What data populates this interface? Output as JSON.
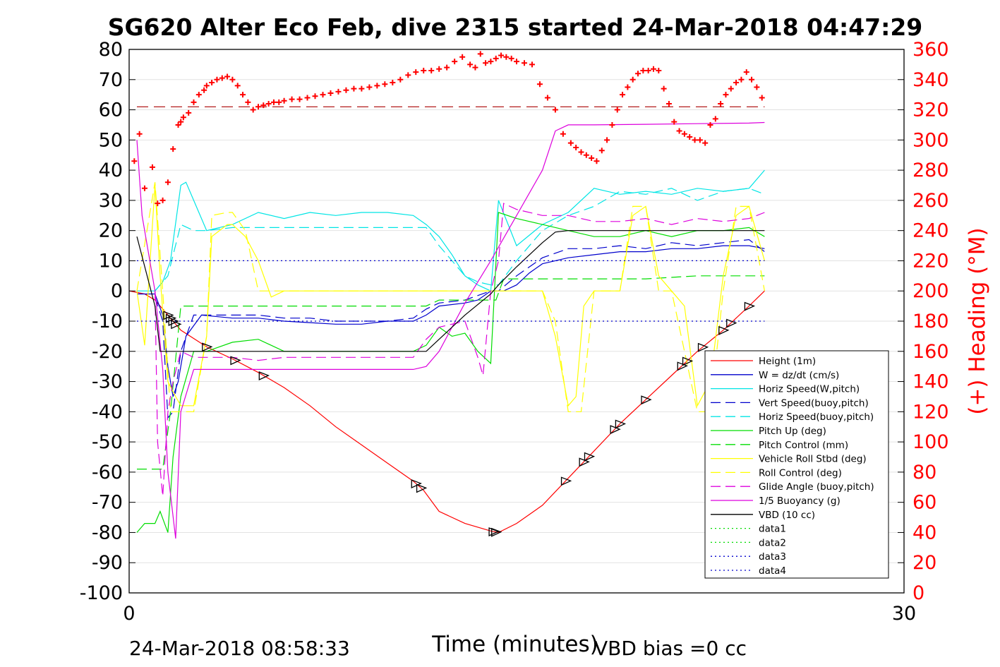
{
  "chart_data": {
    "type": "line",
    "title": "SG620 Alter Eco Feb, dive 2315 started 24-Mar-2018 04:47:29",
    "xlabel": "Time (minutes)",
    "ylabel": "",
    "ylabel_right": "(+) Heading (°M)",
    "xlim": [
      0,
      30
    ],
    "ylim": [
      -100,
      80
    ],
    "ylim_right": [
      0,
      360
    ],
    "x_ticks": [
      "0",
      "30"
    ],
    "y_ticks": [
      "80",
      "70",
      "60",
      "50",
      "40",
      "30",
      "20",
      "10",
      "0",
      "-10",
      "-20",
      "-30",
      "-40",
      "-50",
      "-60",
      "-70",
      "-80",
      "-90",
      "-100"
    ],
    "y_ticks_right": [
      "360",
      "340",
      "320",
      "300",
      "280",
      "260",
      "240",
      "220",
      "200",
      "180",
      "160",
      "140",
      "120",
      "100",
      "80",
      "60",
      "40",
      "20",
      "0"
    ],
    "grid": true,
    "legend_position": "lower-right",
    "footer_left": "24-Mar-2018 08:58:33",
    "footer_right": "VBD bias =0 cc",
    "colors": {
      "red": "#ff0000",
      "blue": "#0000cc",
      "cyan": "#00e5e5",
      "green": "#00dd00",
      "yellow": "#ffff00",
      "magenta": "#dd00dd",
      "black": "#000000",
      "darkred": "#aa0000"
    },
    "series": [
      {
        "name": "Height (1m)",
        "color": "#ff0000",
        "style": "solid",
        "x": [
          0,
          0.6,
          1.0,
          1.5,
          2.0,
          3.0,
          4.0,
          5.0,
          6.0,
          7.0,
          8.0,
          9.0,
          10.0,
          11.0,
          11.4,
          12.0,
          13.0,
          14.0,
          14.3,
          15.0,
          16.0,
          17.0,
          18.0,
          19.0,
          20.0,
          21.0,
          22.0,
          23.0,
          24.0,
          24.6
        ],
        "y": [
          0,
          -1,
          -3,
          -8,
          -13,
          -18.5,
          -22.5,
          -27,
          -32,
          -38,
          -45,
          -51,
          -57,
          -63,
          -66,
          -73,
          -77,
          -79.5,
          -80,
          -77,
          -71,
          -62,
          -53,
          -44,
          -36,
          -28,
          -20,
          -13,
          -5,
          0
        ]
      },
      {
        "name": "W = dz/dt (cm/s)",
        "color": "#0000cc",
        "style": "solid",
        "x": [
          0.3,
          1.0,
          1.3,
          1.5,
          1.7,
          1.9,
          2.2,
          2.8,
          4.0,
          5.0,
          6.0,
          7.0,
          8.0,
          9.0,
          10.0,
          11.0,
          11.5,
          12.0,
          13.0,
          13.5,
          14.0,
          14.2,
          14.5,
          15.0,
          15.5,
          16.0,
          17.0,
          18.0,
          19.0,
          20.0,
          21.0,
          22.0,
          23.0,
          24.0,
          24.6
        ],
        "y": [
          -1,
          -1,
          -8,
          -25,
          -35,
          -30,
          -15,
          -8,
          -9,
          -9,
          -10,
          -10.5,
          -11,
          -11,
          -10,
          -10,
          -8,
          -5,
          -4,
          -3,
          0,
          0,
          0,
          2,
          6,
          9,
          11,
          12,
          13,
          13,
          14,
          14,
          15,
          15,
          14
        ]
      },
      {
        "name": "Horiz Speed(W,pitch)",
        "color": "#00e5e5",
        "style": "solid",
        "x": [
          0.3,
          1.0,
          1.3,
          1.6,
          2.0,
          2.2,
          2.5,
          3.0,
          4.0,
          5.0,
          6.0,
          7.0,
          8.0,
          9.0,
          10.0,
          11.0,
          11.5,
          12.0,
          12.5,
          13.0,
          13.5,
          14.0,
          14.3,
          15.0,
          16.0,
          17.0,
          18.0,
          19.0,
          20.0,
          21.0,
          22.0,
          23.0,
          24.0,
          24.6
        ],
        "y": [
          0,
          0,
          3,
          10,
          35,
          36,
          30,
          20,
          22,
          26,
          24,
          26,
          25,
          26,
          26,
          25,
          22,
          18,
          12,
          5,
          2,
          0,
          30,
          15,
          22,
          26,
          34,
          32,
          33,
          32,
          34,
          33,
          34,
          40
        ]
      },
      {
        "name": "Vert Speed(buoy,pitch)",
        "color": "#0000cc",
        "style": "dashed",
        "x": [
          1.0,
          1.3,
          1.5,
          1.7,
          2.0,
          2.5,
          3.0,
          4.0,
          5.0,
          6.0,
          7.0,
          8.0,
          9.0,
          10.0,
          11.0,
          11.5,
          12.0,
          13.0,
          14.0,
          14.3,
          15.0,
          16.0,
          17.0,
          18.0,
          19.0,
          20.0,
          21.0,
          22.0,
          23.0,
          24.0,
          24.6
        ],
        "y": [
          -2,
          -10,
          -42,
          -40,
          -20,
          -8,
          -8,
          -8,
          -8,
          -9,
          -9,
          -10,
          -10,
          -10,
          -9,
          -6,
          -4,
          -3,
          0,
          0,
          5,
          11,
          14,
          14,
          15,
          14,
          16,
          15,
          16,
          17,
          13
        ]
      },
      {
        "name": "Horiz Speed(buoy,pitch)",
        "color": "#00e5e5",
        "style": "dashed",
        "x": [
          1.0,
          1.5,
          2.0,
          2.5,
          3.0,
          4.0,
          5.0,
          6.0,
          7.0,
          8.0,
          9.0,
          10.0,
          11.0,
          11.5,
          12.0,
          12.5,
          13.0,
          13.5,
          14.0,
          14.3,
          15.0,
          16.0,
          17.0,
          18.0,
          19.0,
          20.0,
          21.0,
          22.0,
          23.0,
          24.0,
          24.6
        ],
        "y": [
          0,
          5,
          22,
          20,
          20,
          21,
          21,
          21,
          21,
          21,
          21,
          21,
          21,
          21,
          15,
          10,
          5,
          3,
          2,
          2,
          10,
          20,
          25,
          28,
          33,
          32,
          34,
          30,
          33,
          34,
          32
        ]
      },
      {
        "name": "Pitch Up (deg)",
        "color": "#00dd00",
        "style": "solid",
        "x": [
          0.3,
          0.6,
          1.0,
          1.2,
          1.5,
          1.7,
          2.0,
          2.5,
          3.0,
          4.0,
          5.0,
          6.0,
          7.0,
          8.0,
          9.0,
          10.0,
          11.0,
          11.5,
          12.0,
          12.5,
          13.0,
          13.5,
          14.0,
          14.3,
          15.0,
          16.0,
          17.0,
          18.0,
          19.0,
          20.0,
          21.0,
          22.0,
          23.0,
          24.0,
          24.6
        ],
        "y": [
          -80,
          -77,
          -77,
          -73,
          -80,
          -55,
          -35,
          -20,
          -20,
          -17,
          -16,
          -20,
          -20,
          -20,
          -20,
          -20,
          -20,
          -18,
          -12,
          -15,
          -14,
          -20,
          -24,
          26,
          24,
          22,
          20,
          18,
          18,
          20,
          18,
          20,
          20,
          21,
          18
        ]
      },
      {
        "name": "Pitch Control (mm)",
        "color": "#00dd00",
        "style": "dashed",
        "x": [
          0.3,
          1.0,
          1.3,
          1.6,
          2.0,
          2.5,
          4.0,
          6.0,
          8.0,
          10.0,
          11.5,
          12.0,
          13.0,
          14.0,
          14.2,
          14.5,
          15.0,
          16.0,
          18.0,
          20.0,
          22.0,
          24.0,
          24.6
        ],
        "y": [
          -59,
          -59,
          -59,
          -40,
          -5,
          -5,
          -5,
          -5,
          -5,
          -5,
          -5,
          -3,
          -3,
          -3,
          -3,
          4,
          4,
          4,
          4,
          4,
          5,
          5,
          5
        ]
      },
      {
        "name": "Vehicle Roll Stbd (deg)",
        "color": "#ffff00",
        "style": "solid",
        "x": [
          0.3,
          0.6,
          1.0,
          1.2,
          1.5,
          1.8,
          2.0,
          2.5,
          3.0,
          3.2,
          3.8,
          4.0,
          4.5,
          5.0,
          5.5,
          6.0,
          6.5,
          7.0,
          8.0,
          9.0,
          10.0,
          11.0,
          12.0,
          13.0,
          14.0,
          15.0,
          16.0,
          16.5,
          17.0,
          17.3,
          17.6,
          18.0,
          19.0,
          19.5,
          20.0,
          20.5,
          21.0,
          21.5,
          22.0,
          22.5,
          23.0,
          23.5,
          24.0,
          24.6
        ],
        "y": [
          0,
          -18,
          35,
          5,
          -30,
          -35,
          -38,
          -38,
          -15,
          18,
          22,
          22,
          18,
          10,
          -2,
          0,
          0,
          0,
          0,
          0,
          0,
          0,
          0,
          0,
          0,
          0,
          0,
          -15,
          -38,
          -35,
          -5,
          0,
          0,
          25,
          28,
          5,
          0,
          -5,
          -38,
          -30,
          5,
          25,
          28,
          10
        ]
      },
      {
        "name": "Roll Control (deg)",
        "color": "#ffff00",
        "style": "dashed",
        "x": [
          0.3,
          1.0,
          1.3,
          1.6,
          2.0,
          2.5,
          3.0,
          3.2,
          3.8,
          4.0,
          4.5,
          5.0,
          6.0,
          8.0,
          10.0,
          12.0,
          14.0,
          16.0,
          16.5,
          17.0,
          17.5,
          18.0,
          19.0,
          19.5,
          20.0,
          20.5,
          21.0,
          22.0,
          22.5,
          23.0,
          23.5,
          24.0,
          24.6
        ],
        "y": [
          0,
          36,
          0,
          -40,
          -40,
          -40,
          -15,
          25,
          26,
          26,
          20,
          0,
          0,
          0,
          0,
          0,
          0,
          0,
          -10,
          -40,
          -40,
          0,
          0,
          28,
          28,
          0,
          0,
          -40,
          -40,
          0,
          28,
          28,
          0
        ]
      },
      {
        "name": "Glide Angle (buoy,pitch)",
        "color": "#dd00dd",
        "style": "dashed",
        "x": [
          1.0,
          1.1,
          1.3,
          1.5,
          1.7,
          2.0,
          2.5,
          3.0,
          4.0,
          5.0,
          6.0,
          7.0,
          8.0,
          9.0,
          10.0,
          11.0,
          11.5,
          12.0,
          13.0,
          13.5,
          13.7,
          14.0,
          14.3,
          14.5,
          15.0,
          16.0,
          17.0,
          18.0,
          19.0,
          20.0,
          21.0,
          22.0,
          23.0,
          24.0,
          24.6
        ],
        "y": [
          0,
          -50,
          -68,
          -40,
          -30,
          -20,
          -22,
          -22,
          -22,
          -23,
          -22,
          -22,
          -22,
          -22,
          -22,
          -22,
          -16,
          -12,
          -10,
          -22,
          -28,
          0,
          10,
          29,
          27,
          25,
          25,
          23,
          23,
          24,
          22,
          24,
          23,
          24,
          26
        ]
      },
      {
        "name": "1/5 Buoyancy (g)",
        "color": "#dd00dd",
        "style": "solid",
        "x": [
          0.3,
          0.5,
          1.0,
          1.3,
          1.5,
          1.8,
          2.0,
          2.5,
          3.0,
          5.0,
          8.0,
          11.0,
          11.5,
          12.0,
          13.0,
          14.0,
          15.0,
          16.0,
          16.5,
          17.0,
          18.0,
          20.0,
          22.0,
          24.0,
          24.6
        ],
        "y": [
          50,
          25,
          0,
          -26,
          -60,
          -82,
          -40,
          -26,
          -26,
          -26,
          -26,
          -26,
          -25,
          -20,
          -4,
          10,
          25,
          40,
          53,
          55,
          55,
          55.2,
          55.4,
          55.6,
          55.8
        ]
      },
      {
        "name": "VBD (10 cc)",
        "color": "#000000",
        "style": "solid",
        "x": [
          0.3,
          1.0,
          1.2,
          1.5,
          2.0,
          4.0,
          6.0,
          8.0,
          10.0,
          11.0,
          11.5,
          12.0,
          13.0,
          14.0,
          14.3,
          15.0,
          16.0,
          16.5,
          17.0,
          18.0,
          20.0,
          22.0,
          24.0,
          24.6
        ],
        "y": [
          18,
          -5,
          -20,
          -20,
          -20,
          -20,
          -20,
          -20,
          -20,
          -20,
          -20,
          -16,
          -8,
          -1,
          2,
          8,
          16,
          19.5,
          20,
          20,
          20,
          20,
          20,
          20
        ]
      },
      {
        "name": "data1",
        "color": "#00dd00",
        "style": "dotted",
        "x": [],
        "y": []
      },
      {
        "name": "data2",
        "color": "#00dd00",
        "style": "dotted",
        "x": [],
        "y": []
      },
      {
        "name": "data3",
        "color": "#0000cc",
        "style": "dotted",
        "x": [
          0.3,
          24.6
        ],
        "y": [
          10,
          10
        ]
      },
      {
        "name": "data4",
        "color": "#0000cc",
        "style": "dotted",
        "x": [
          0.3,
          24.6
        ],
        "y": [
          -10,
          -10
        ]
      }
    ],
    "heading_points": {
      "axis": "right",
      "marker": "plus",
      "color": "#ff0000",
      "x": [
        0.2,
        0.4,
        0.6,
        0.9,
        1.1,
        1.3,
        1.5,
        1.7,
        1.9,
        2.0,
        2.1,
        2.3,
        2.5,
        2.7,
        2.9,
        3.0,
        3.2,
        3.4,
        3.6,
        3.8,
        4.0,
        4.2,
        4.4,
        4.6,
        4.8,
        5.0,
        5.2,
        5.4,
        5.6,
        5.8,
        6.0,
        6.3,
        6.6,
        6.9,
        7.2,
        7.5,
        7.8,
        8.1,
        8.4,
        8.7,
        9.0,
        9.3,
        9.6,
        9.9,
        10.2,
        10.5,
        10.8,
        11.1,
        11.4,
        11.7,
        12.0,
        12.3,
        12.6,
        12.9,
        13.2,
        13.4,
        13.6,
        13.8,
        14.0,
        14.2,
        14.4,
        14.6,
        14.8,
        15.0,
        15.3,
        15.6,
        15.9,
        16.2,
        16.5,
        16.8,
        17.1,
        17.3,
        17.5,
        17.7,
        17.9,
        18.1,
        18.3,
        18.5,
        18.7,
        18.9,
        19.1,
        19.3,
        19.5,
        19.7,
        19.9,
        20.1,
        20.3,
        20.5,
        20.7,
        20.9,
        21.1,
        21.3,
        21.5,
        21.7,
        21.9,
        22.1,
        22.3,
        22.5,
        22.7,
        22.9,
        23.1,
        23.3,
        23.5,
        23.7,
        23.9,
        24.1,
        24.3,
        24.5
      ],
      "y": [
        286,
        304,
        268,
        282,
        258,
        260,
        272,
        294,
        310,
        312,
        315,
        318,
        325,
        330,
        333,
        336,
        338,
        340,
        341,
        342,
        340,
        336,
        330,
        325,
        320,
        322,
        323,
        324,
        325,
        325,
        326,
        327,
        327,
        328,
        329,
        330,
        331,
        332,
        333,
        334,
        334,
        335,
        336,
        337,
        338,
        340,
        343,
        345,
        346,
        346,
        347,
        348,
        352,
        355,
        350,
        348,
        357,
        351,
        352,
        354,
        356,
        355,
        354,
        352,
        351,
        350,
        337,
        328,
        320,
        304,
        298,
        295,
        292,
        290,
        288,
        286,
        293,
        300,
        310,
        320,
        330,
        335,
        340,
        344,
        346,
        346,
        347,
        346,
        334,
        324,
        312,
        306,
        304,
        302,
        300,
        300,
        298,
        310,
        314,
        324,
        330,
        334,
        338,
        340,
        345,
        340,
        335,
        328
      ]
    },
    "reference_line": {
      "axis": "right",
      "value": 322,
      "color": "#aa0000",
      "style": "dashed"
    },
    "triangle_markers": {
      "on_series": "Height (1m)",
      "x": [
        1.5,
        1.6,
        1.7,
        1.8,
        3.0,
        4.1,
        5.2,
        11.1,
        11.3,
        14.1,
        14.2,
        16.9,
        17.6,
        17.8,
        18.8,
        19.0,
        20.0,
        21.4,
        21.6,
        22.2,
        23.0,
        23.3,
        24.0
      ]
    }
  }
}
